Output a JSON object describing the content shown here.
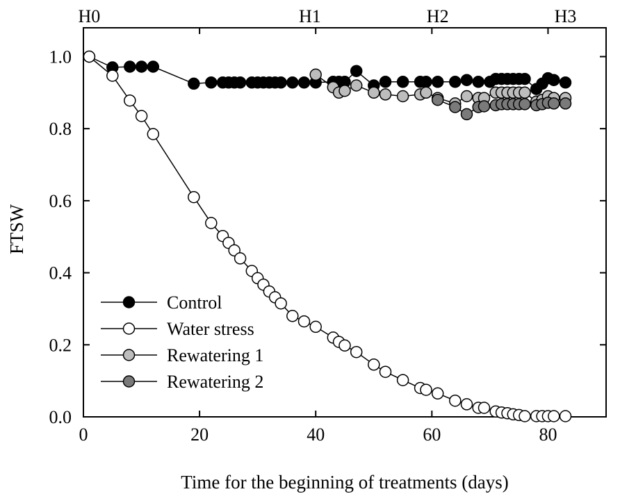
{
  "chart_data": {
    "type": "line",
    "title": "",
    "xlabel": "Time for the beginning of treatments (days)",
    "ylabel": "FTSW",
    "xlim": [
      0,
      90
    ],
    "ylim": [
      0,
      1.08
    ],
    "xticks": [
      0,
      20,
      40,
      60,
      80
    ],
    "xtick_labels": [
      "0",
      "20",
      "40",
      "60",
      "80"
    ],
    "yticks": [
      0,
      0.2,
      0.4,
      0.6,
      0.8,
      1.0
    ],
    "ytick_labels": [
      "0.0",
      "0.2",
      "0.4",
      "0.6",
      "0.8",
      "1.0"
    ],
    "grid": false,
    "legend_position": "bottom-left",
    "top_annotations": [
      {
        "label": "H0",
        "x": 1
      },
      {
        "label": "H1",
        "x": 39
      },
      {
        "label": "H2",
        "x": 61
      },
      {
        "label": "H3",
        "x": 83
      }
    ],
    "series": [
      {
        "name": "Control",
        "fill": "#000000",
        "x": [
          1,
          5,
          8,
          10,
          12,
          19,
          22,
          24,
          25,
          26,
          27,
          29,
          30,
          31,
          32,
          33,
          34,
          36,
          38,
          40,
          43,
          44,
          45,
          47,
          50,
          52,
          55,
          58,
          59,
          61,
          64,
          66,
          68,
          70,
          71,
          72,
          73,
          74,
          75,
          76,
          78,
          79,
          80,
          81,
          83
        ],
        "y": [
          1.0,
          0.97,
          0.972,
          0.972,
          0.972,
          0.925,
          0.928,
          0.928,
          0.928,
          0.928,
          0.928,
          0.928,
          0.928,
          0.928,
          0.928,
          0.928,
          0.928,
          0.928,
          0.928,
          0.928,
          0.93,
          0.93,
          0.93,
          0.96,
          0.92,
          0.93,
          0.93,
          0.93,
          0.93,
          0.93,
          0.93,
          0.935,
          0.93,
          0.93,
          0.938,
          0.938,
          0.938,
          0.938,
          0.938,
          0.938,
          0.91,
          0.925,
          0.94,
          0.935,
          0.928
        ]
      },
      {
        "name": "Water stress",
        "fill": "#ffffff",
        "x": [
          1,
          5,
          8,
          10,
          12,
          19,
          22,
          24,
          25,
          26,
          27,
          29,
          30,
          31,
          32,
          33,
          34,
          36,
          38,
          40,
          43,
          44,
          45,
          47,
          50,
          52,
          55,
          58,
          59,
          61,
          64,
          66,
          68,
          69,
          71,
          72,
          73,
          74,
          75,
          76,
          78,
          79,
          80,
          81,
          83
        ],
        "y": [
          1.0,
          0.947,
          0.878,
          0.835,
          0.785,
          0.61,
          0.538,
          0.502,
          0.483,
          0.462,
          0.44,
          0.405,
          0.385,
          0.367,
          0.348,
          0.332,
          0.315,
          0.28,
          0.265,
          0.25,
          0.22,
          0.208,
          0.198,
          0.18,
          0.145,
          0.125,
          0.102,
          0.08,
          0.075,
          0.065,
          0.045,
          0.035,
          0.025,
          0.025,
          0.015,
          0.012,
          0.01,
          0.007,
          0.005,
          0.002,
          0.002,
          0.002,
          0.002,
          0.002,
          0.002
        ]
      },
      {
        "name": "Rewatering 1",
        "fill": "#bdbdbd",
        "x": [
          40,
          43,
          44,
          45,
          47,
          50,
          52,
          55,
          58,
          59,
          61,
          64,
          66,
          68,
          69,
          71,
          72,
          73,
          74,
          75,
          76,
          78,
          79,
          80,
          81,
          83
        ],
        "y": [
          0.95,
          0.915,
          0.9,
          0.905,
          0.92,
          0.9,
          0.895,
          0.89,
          0.895,
          0.9,
          0.885,
          0.87,
          0.89,
          0.885,
          0.885,
          0.9,
          0.9,
          0.9,
          0.9,
          0.9,
          0.9,
          0.875,
          0.88,
          0.89,
          0.885,
          0.885
        ]
      },
      {
        "name": "Rewatering 2",
        "fill": "#7a7a7a",
        "x": [
          61,
          64,
          66,
          68,
          69,
          71,
          72,
          73,
          74,
          75,
          76,
          78,
          79,
          80,
          81,
          83
        ],
        "y": [
          0.88,
          0.86,
          0.84,
          0.86,
          0.862,
          0.865,
          0.868,
          0.868,
          0.868,
          0.868,
          0.868,
          0.865,
          0.868,
          0.872,
          0.87,
          0.87
        ]
      }
    ]
  }
}
